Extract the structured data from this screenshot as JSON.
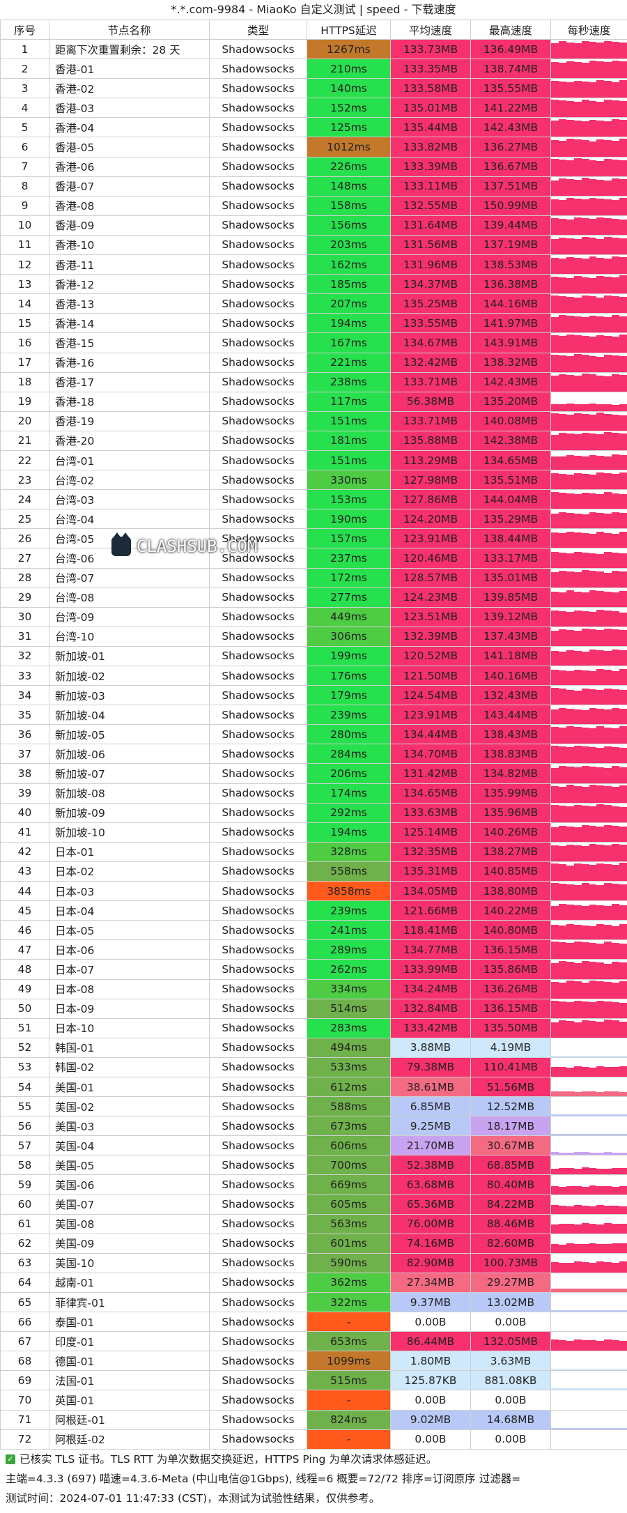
{
  "title": "*.*.com-9984 - MiaoKo 自定义测试 | speed - 下载速度",
  "headers": [
    "序号",
    "节点名称",
    "类型",
    "HTTPS延迟",
    "平均速度",
    "最高速度",
    "每秒速度"
  ],
  "rows": [
    [
      "1",
      "距离下次重置剩余：28 天",
      "Shadowsocks",
      "1267ms",
      "133.73MB",
      "136.49MB"
    ],
    [
      "2",
      "香港-01",
      "Shadowsocks",
      "210ms",
      "133.35MB",
      "138.74MB"
    ],
    [
      "3",
      "香港-02",
      "Shadowsocks",
      "140ms",
      "133.58MB",
      "135.55MB"
    ],
    [
      "4",
      "香港-03",
      "Shadowsocks",
      "152ms",
      "135.01MB",
      "141.22MB"
    ],
    [
      "5",
      "香港-04",
      "Shadowsocks",
      "125ms",
      "135.44MB",
      "142.43MB"
    ],
    [
      "6",
      "香港-05",
      "Shadowsocks",
      "1012ms",
      "133.82MB",
      "136.27MB"
    ],
    [
      "7",
      "香港-06",
      "Shadowsocks",
      "226ms",
      "133.39MB",
      "136.67MB"
    ],
    [
      "8",
      "香港-07",
      "Shadowsocks",
      "148ms",
      "133.11MB",
      "137.51MB"
    ],
    [
      "9",
      "香港-08",
      "Shadowsocks",
      "158ms",
      "132.55MB",
      "150.99MB"
    ],
    [
      "10",
      "香港-09",
      "Shadowsocks",
      "156ms",
      "131.64MB",
      "139.44MB"
    ],
    [
      "11",
      "香港-10",
      "Shadowsocks",
      "203ms",
      "131.56MB",
      "137.19MB"
    ],
    [
      "12",
      "香港-11",
      "Shadowsocks",
      "162ms",
      "131.96MB",
      "138.53MB"
    ],
    [
      "13",
      "香港-12",
      "Shadowsocks",
      "185ms",
      "134.37MB",
      "136.38MB"
    ],
    [
      "14",
      "香港-13",
      "Shadowsocks",
      "207ms",
      "135.25MB",
      "144.16MB"
    ],
    [
      "15",
      "香港-14",
      "Shadowsocks",
      "194ms",
      "133.55MB",
      "141.97MB"
    ],
    [
      "16",
      "香港-15",
      "Shadowsocks",
      "167ms",
      "134.67MB",
      "143.91MB"
    ],
    [
      "17",
      "香港-16",
      "Shadowsocks",
      "221ms",
      "132.42MB",
      "138.32MB"
    ],
    [
      "18",
      "香港-17",
      "Shadowsocks",
      "238ms",
      "133.71MB",
      "142.43MB"
    ],
    [
      "19",
      "香港-18",
      "Shadowsocks",
      "117ms",
      "56.38MB",
      "135.20MB"
    ],
    [
      "20",
      "香港-19",
      "Shadowsocks",
      "151ms",
      "133.71MB",
      "140.08MB"
    ],
    [
      "21",
      "香港-20",
      "Shadowsocks",
      "181ms",
      "135.88MB",
      "142.38MB"
    ],
    [
      "22",
      "台湾-01",
      "Shadowsocks",
      "151ms",
      "113.29MB",
      "134.65MB"
    ],
    [
      "23",
      "台湾-02",
      "Shadowsocks",
      "330ms",
      "127.98MB",
      "135.51MB"
    ],
    [
      "24",
      "台湾-03",
      "Shadowsocks",
      "153ms",
      "127.86MB",
      "144.04MB"
    ],
    [
      "25",
      "台湾-04",
      "Shadowsocks",
      "190ms",
      "124.20MB",
      "135.29MB"
    ],
    [
      "26",
      "台湾-05",
      "Shadowsocks",
      "157ms",
      "123.91MB",
      "138.44MB"
    ],
    [
      "27",
      "台湾-06",
      "Shadowsocks",
      "237ms",
      "120.46MB",
      "133.17MB"
    ],
    [
      "28",
      "台湾-07",
      "Shadowsocks",
      "172ms",
      "128.57MB",
      "135.01MB"
    ],
    [
      "29",
      "台湾-08",
      "Shadowsocks",
      "277ms",
      "124.23MB",
      "139.85MB"
    ],
    [
      "30",
      "台湾-09",
      "Shadowsocks",
      "449ms",
      "123.51MB",
      "139.12MB"
    ],
    [
      "31",
      "台湾-10",
      "Shadowsocks",
      "306ms",
      "132.39MB",
      "137.43MB"
    ],
    [
      "32",
      "新加坡-01",
      "Shadowsocks",
      "199ms",
      "120.52MB",
      "141.18MB"
    ],
    [
      "33",
      "新加坡-02",
      "Shadowsocks",
      "176ms",
      "121.50MB",
      "140.16MB"
    ],
    [
      "34",
      "新加坡-03",
      "Shadowsocks",
      "179ms",
      "124.54MB",
      "132.43MB"
    ],
    [
      "35",
      "新加坡-04",
      "Shadowsocks",
      "239ms",
      "123.91MB",
      "143.44MB"
    ],
    [
      "36",
      "新加坡-05",
      "Shadowsocks",
      "280ms",
      "134.44MB",
      "138.43MB"
    ],
    [
      "37",
      "新加坡-06",
      "Shadowsocks",
      "284ms",
      "134.70MB",
      "138.83MB"
    ],
    [
      "38",
      "新加坡-07",
      "Shadowsocks",
      "206ms",
      "131.42MB",
      "134.82MB"
    ],
    [
      "39",
      "新加坡-08",
      "Shadowsocks",
      "174ms",
      "134.65MB",
      "135.99MB"
    ],
    [
      "40",
      "新加坡-09",
      "Shadowsocks",
      "292ms",
      "133.63MB",
      "135.96MB"
    ],
    [
      "41",
      "新加坡-10",
      "Shadowsocks",
      "194ms",
      "125.14MB",
      "140.26MB"
    ],
    [
      "42",
      "日本-01",
      "Shadowsocks",
      "328ms",
      "132.35MB",
      "138.27MB"
    ],
    [
      "43",
      "日本-02",
      "Shadowsocks",
      "558ms",
      "135.31MB",
      "140.85MB"
    ],
    [
      "44",
      "日本-03",
      "Shadowsocks",
      "3858ms",
      "134.05MB",
      "138.80MB"
    ],
    [
      "45",
      "日本-04",
      "Shadowsocks",
      "239ms",
      "121.66MB",
      "140.22MB"
    ],
    [
      "46",
      "日本-05",
      "Shadowsocks",
      "241ms",
      "118.41MB",
      "140.80MB"
    ],
    [
      "47",
      "日本-06",
      "Shadowsocks",
      "289ms",
      "134.77MB",
      "136.15MB"
    ],
    [
      "48",
      "日本-07",
      "Shadowsocks",
      "262ms",
      "133.99MB",
      "135.86MB"
    ],
    [
      "49",
      "日本-08",
      "Shadowsocks",
      "334ms",
      "134.24MB",
      "136.26MB"
    ],
    [
      "50",
      "日本-09",
      "Shadowsocks",
      "514ms",
      "132.84MB",
      "136.15MB"
    ],
    [
      "51",
      "日本-10",
      "Shadowsocks",
      "283ms",
      "133.42MB",
      "135.50MB"
    ],
    [
      "52",
      "韩国-01",
      "Shadowsocks",
      "494ms",
      "3.88MB",
      "4.19MB"
    ],
    [
      "53",
      "韩国-02",
      "Shadowsocks",
      "533ms",
      "79.38MB",
      "110.41MB"
    ],
    [
      "54",
      "美国-01",
      "Shadowsocks",
      "612ms",
      "38.61MB",
      "51.56MB"
    ],
    [
      "55",
      "美国-02",
      "Shadowsocks",
      "588ms",
      "6.85MB",
      "12.52MB"
    ],
    [
      "56",
      "美国-03",
      "Shadowsocks",
      "673ms",
      "9.25MB",
      "18.17MB"
    ],
    [
      "57",
      "美国-04",
      "Shadowsocks",
      "606ms",
      "21.70MB",
      "30.67MB"
    ],
    [
      "58",
      "美国-05",
      "Shadowsocks",
      "700ms",
      "52.38MB",
      "68.85MB"
    ],
    [
      "59",
      "美国-06",
      "Shadowsocks",
      "669ms",
      "63.68MB",
      "80.40MB"
    ],
    [
      "60",
      "美国-07",
      "Shadowsocks",
      "605ms",
      "65.36MB",
      "84.22MB"
    ],
    [
      "61",
      "美国-08",
      "Shadowsocks",
      "563ms",
      "76.00MB",
      "88.46MB"
    ],
    [
      "62",
      "美国-09",
      "Shadowsocks",
      "601ms",
      "74.16MB",
      "82.60MB"
    ],
    [
      "63",
      "美国-10",
      "Shadowsocks",
      "590ms",
      "82.90MB",
      "100.73MB"
    ],
    [
      "64",
      "越南-01",
      "Shadowsocks",
      "362ms",
      "27.34MB",
      "29.27MB"
    ],
    [
      "65",
      "菲律宾-01",
      "Shadowsocks",
      "322ms",
      "9.37MB",
      "13.02MB"
    ],
    [
      "66",
      "泰国-01",
      "Shadowsocks",
      "-",
      "0.00B",
      "0.00B"
    ],
    [
      "67",
      "印度-01",
      "Shadowsocks",
      "653ms",
      "86.44MB",
      "132.05MB"
    ],
    [
      "68",
      "德国-01",
      "Shadowsocks",
      "1099ms",
      "1.80MB",
      "3.63MB"
    ],
    [
      "69",
      "法国-01",
      "Shadowsocks",
      "515ms",
      "125.87KB",
      "881.08KB"
    ],
    [
      "70",
      "英国-01",
      "Shadowsocks",
      "-",
      "0.00B",
      "0.00B"
    ],
    [
      "71",
      "阿根廷-01",
      "Shadowsocks",
      "824ms",
      "9.02MB",
      "14.68MB"
    ],
    [
      "72",
      "阿根廷-02",
      "Shadowsocks",
      "-",
      "0.00B",
      "0.00B"
    ]
  ],
  "footer": {
    "line1": "已核实 TLS 证书。TLS RTT 为单次数据交换延迟，HTTPS Ping 为单次请求体感延迟。",
    "line2": "主端=4.3.3 (697) 喵速=4.3.6-Meta (中山电信@1Gbps), 线程=6 概要=72/72 排序=订阅原序 过滤器=",
    "line3": "测试时间：2024-07-01 11:47:33 (CST)，本测试为试验性结果，仅供参考。"
  },
  "watermark": "CLASHSUB.COM",
  "colors": {
    "pink": "#f7306e",
    "green": "#26e04d",
    "brown": "#c3782a",
    "orange": "#ff5a1c",
    "olive": "#6fb14a",
    "check": "#3aa53a"
  }
}
